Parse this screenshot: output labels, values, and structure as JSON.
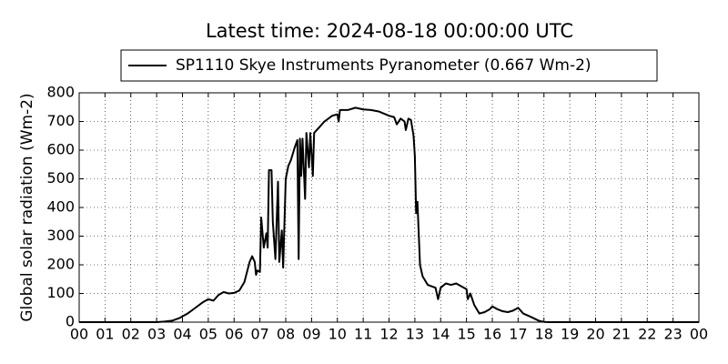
{
  "chart_data": {
    "type": "line",
    "title": "Latest time: 2024-08-18 00:00:00 UTC",
    "y_label": "Global solar radiation (Wm-2)",
    "grid": true,
    "legend_position": "top",
    "x": [
      0,
      3.0,
      3.3,
      3.6,
      3.9,
      4.2,
      4.5,
      4.8,
      5.0,
      5.2,
      5.4,
      5.6,
      5.8,
      6.0,
      6.2,
      6.4,
      6.6,
      6.7,
      6.8,
      6.85,
      6.9,
      7.0,
      7.05,
      7.15,
      7.25,
      7.3,
      7.35,
      7.45,
      7.5,
      7.6,
      7.7,
      7.75,
      7.85,
      7.9,
      8.0,
      8.1,
      8.2,
      8.35,
      8.45,
      8.5,
      8.55,
      8.6,
      8.65,
      8.75,
      8.8,
      8.9,
      8.95,
      9.05,
      9.1,
      9.3,
      9.5,
      9.8,
      10.0,
      10.05,
      10.1,
      10.4,
      10.7,
      11.0,
      11.3,
      11.6,
      12.0,
      12.2,
      12.3,
      12.45,
      12.6,
      12.65,
      12.75,
      12.85,
      12.95,
      13.0,
      13.05,
      13.1,
      13.2,
      13.3,
      13.5,
      13.8,
      13.9,
      14.0,
      14.2,
      14.4,
      14.6,
      14.8,
      15.0,
      15.05,
      15.15,
      15.3,
      15.5,
      15.7,
      15.9,
      16.0,
      16.2,
      16.4,
      16.6,
      16.8,
      17.0,
      17.2,
      17.5,
      17.8,
      18.0,
      18.2,
      24
    ],
    "series": [
      {
        "name": "SP1110 Skye Instruments Pyranometer (0.667 Wm-2)",
        "color": "#000000",
        "values": [
          0,
          0,
          2,
          5,
          15,
          30,
          50,
          70,
          80,
          75,
          95,
          105,
          100,
          102,
          110,
          140,
          210,
          230,
          210,
          165,
          180,
          175,
          365,
          260,
          310,
          260,
          530,
          530,
          350,
          220,
          490,
          210,
          320,
          190,
          500,
          545,
          565,
          610,
          635,
          220,
          640,
          510,
          640,
          430,
          660,
          540,
          660,
          510,
          660,
          680,
          700,
          720,
          725,
          700,
          740,
          740,
          748,
          742,
          740,
          735,
          720,
          715,
          690,
          710,
          700,
          670,
          710,
          705,
          650,
          580,
          380,
          420,
          200,
          160,
          130,
          120,
          80,
          120,
          135,
          130,
          135,
          125,
          115,
          80,
          100,
          60,
          30,
          35,
          45,
          55,
          45,
          38,
          35,
          40,
          50,
          30,
          18,
          5,
          1,
          0,
          0
        ]
      }
    ],
    "xlim": [
      0,
      24
    ],
    "xticks": [
      {
        "value": 0,
        "label": "00"
      },
      {
        "value": 1,
        "label": "01"
      },
      {
        "value": 2,
        "label": "02"
      },
      {
        "value": 3,
        "label": "03"
      },
      {
        "value": 4,
        "label": "04"
      },
      {
        "value": 5,
        "label": "05"
      },
      {
        "value": 6,
        "label": "06"
      },
      {
        "value": 7,
        "label": "07"
      },
      {
        "value": 8,
        "label": "08"
      },
      {
        "value": 9,
        "label": "09"
      },
      {
        "value": 10,
        "label": "10"
      },
      {
        "value": 11,
        "label": "11"
      },
      {
        "value": 12,
        "label": "12"
      },
      {
        "value": 13,
        "label": "13"
      },
      {
        "value": 14,
        "label": "14"
      },
      {
        "value": 15,
        "label": "15"
      },
      {
        "value": 16,
        "label": "16"
      },
      {
        "value": 17,
        "label": "17"
      },
      {
        "value": 18,
        "label": "18"
      },
      {
        "value": 19,
        "label": "19"
      },
      {
        "value": 20,
        "label": "20"
      },
      {
        "value": 21,
        "label": "21"
      },
      {
        "value": 22,
        "label": "22"
      },
      {
        "value": 23,
        "label": "23"
      },
      {
        "value": 24,
        "label": "00"
      }
    ],
    "ylim": [
      0,
      800
    ],
    "yticks": [
      0,
      100,
      200,
      300,
      400,
      500,
      600,
      700,
      800
    ]
  }
}
